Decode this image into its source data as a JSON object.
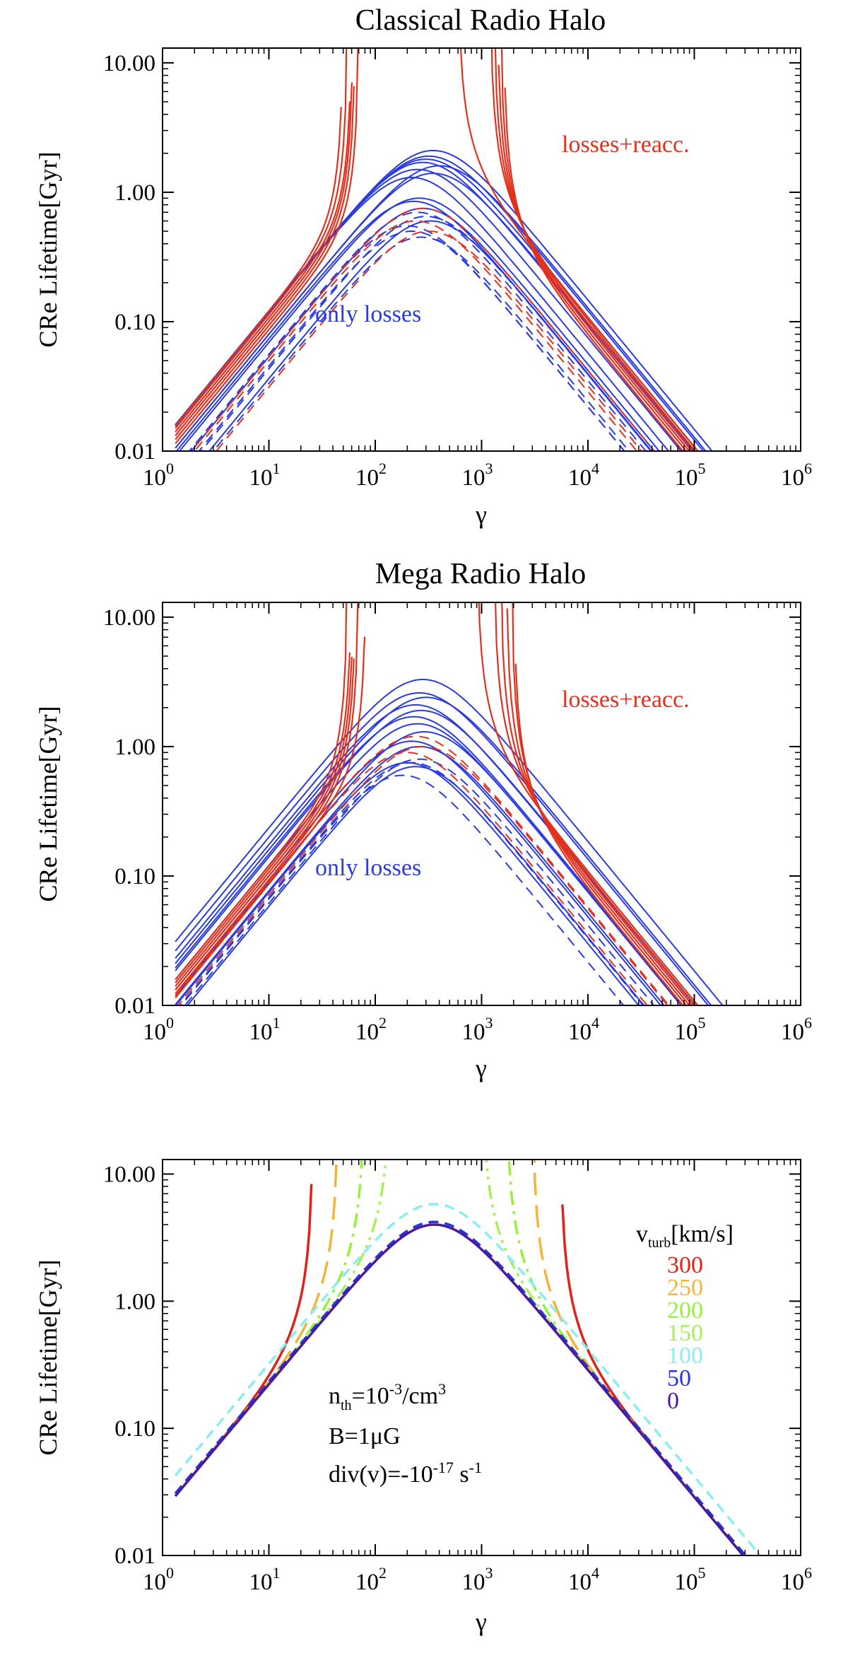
{
  "chart_data": [
    {
      "type": "line",
      "title": "Classical Radio Halo",
      "xlabel": "γ",
      "ylabel": "CRe Lifetime[Gyr]",
      "xscale": "log",
      "yscale": "log",
      "xlim": [
        1,
        1000000
      ],
      "ylim": [
        0.01,
        13
      ],
      "xticks": [
        {
          "base": "10",
          "exp": "0"
        },
        {
          "base": "10",
          "exp": "1"
        },
        {
          "base": "10",
          "exp": "2"
        },
        {
          "base": "10",
          "exp": "3"
        },
        {
          "base": "10",
          "exp": "4"
        },
        {
          "base": "10",
          "exp": "5"
        },
        {
          "base": "10",
          "exp": "6"
        }
      ],
      "yticks": [
        "0.01",
        "0.10",
        "1.00",
        "10.00"
      ],
      "annotations": [
        {
          "text": "losses+reacc.",
          "color": "#e0321e",
          "x": 15000,
          "y": 2.5
        },
        {
          "text": "only losses",
          "color": "#2a3be0",
          "x": 120,
          "y": 0.11
        }
      ],
      "series": [
        {
          "name": "only losses (solid)",
          "color": "#2a3be0",
          "style": "solid",
          "peak_gamma": [
            300,
            350,
            400,
            250,
            280,
            320,
            220,
            350,
            230,
            260,
            280,
            330
          ],
          "peak_value": [
            1.8,
            2.1,
            1.6,
            1.5,
            1.7,
            1.9,
            1.3,
            1.4,
            0.85,
            0.9,
            0.75,
            0.6
          ]
        },
        {
          "name": "only losses (dashed)",
          "color": "#2a3be0",
          "style": "dashed",
          "peak_gamma": [
            200,
            250,
            300,
            220,
            270
          ],
          "peak_value": [
            0.55,
            0.7,
            0.65,
            0.5,
            0.45
          ]
        },
        {
          "name": "losses+reacc. (dashed)",
          "color": "#e0321e",
          "style": "dashed",
          "peak_gamma": [
            240,
            280,
            320
          ],
          "peak_value": [
            0.6,
            0.75,
            0.5
          ]
        },
        {
          "name": "losses+reacc. (solid)",
          "color": "#e0321e",
          "style": "solid",
          "low_gamma_blowup": [
            50,
            55,
            60,
            62,
            65,
            70
          ],
          "high_gamma_blowup": [
            600,
            1200,
            1300,
            1400,
            1500,
            1600
          ]
        }
      ]
    },
    {
      "type": "line",
      "title": "Mega Radio Halo",
      "xlabel": "γ",
      "ylabel": "CRe Lifetime[Gyr]",
      "xscale": "log",
      "yscale": "log",
      "xlim": [
        1,
        1000000
      ],
      "ylim": [
        0.01,
        13
      ],
      "xticks": [
        {
          "base": "10",
          "exp": "0"
        },
        {
          "base": "10",
          "exp": "1"
        },
        {
          "base": "10",
          "exp": "2"
        },
        {
          "base": "10",
          "exp": "3"
        },
        {
          "base": "10",
          "exp": "4"
        },
        {
          "base": "10",
          "exp": "5"
        },
        {
          "base": "10",
          "exp": "6"
        }
      ],
      "yticks": [
        "0.01",
        "0.10",
        "1.00",
        "10.00"
      ],
      "annotations": [
        {
          "text": "losses+reacc.",
          "color": "#e0321e",
          "x": 15000,
          "y": 4.5
        },
        {
          "text": "only losses",
          "color": "#2a3be0",
          "x": 120,
          "y": 0.085
        }
      ],
      "series": [
        {
          "name": "only losses (solid)",
          "color": "#2a3be0",
          "style": "solid",
          "peak_gamma": [
            280,
            260,
            300,
            240,
            270,
            230,
            250,
            290,
            220,
            260,
            200,
            240
          ],
          "peak_value": [
            3.3,
            2.6,
            2.4,
            2.1,
            1.9,
            1.7,
            1.5,
            1.3,
            1.1,
            1.0,
            0.75,
            0.7
          ]
        },
        {
          "name": "only losses (dashed)",
          "color": "#2a3be0",
          "style": "dashed",
          "peak_gamma": [
            180,
            220,
            260
          ],
          "peak_value": [
            0.6,
            0.75,
            0.8
          ]
        },
        {
          "name": "losses+reacc. (dashed)",
          "color": "#e0321e",
          "style": "dashed",
          "peak_gamma": [
            200,
            240,
            280
          ],
          "peak_value": [
            0.9,
            1.2,
            1.0
          ]
        },
        {
          "name": "losses+reacc. (solid)",
          "color": "#e0321e",
          "style": "solid",
          "low_gamma_blowup": [
            55,
            60,
            63,
            66,
            70,
            82
          ],
          "high_gamma_blowup": [
            900,
            1300,
            1500,
            1700,
            1900,
            2000
          ]
        }
      ]
    },
    {
      "type": "line",
      "title": "",
      "xlabel": "γ",
      "ylabel": "CRe Lifetime[Gyr]",
      "xscale": "log",
      "yscale": "log",
      "xlim": [
        1,
        1000000
      ],
      "ylim": [
        0.01,
        13
      ],
      "xticks": [
        {
          "base": "10",
          "exp": "0"
        },
        {
          "base": "10",
          "exp": "1"
        },
        {
          "base": "10",
          "exp": "2"
        },
        {
          "base": "10",
          "exp": "3"
        },
        {
          "base": "10",
          "exp": "4"
        },
        {
          "base": "10",
          "exp": "5"
        },
        {
          "base": "10",
          "exp": "6"
        }
      ],
      "yticks": [
        "0.01",
        "0.10",
        "1.00",
        "10.00"
      ],
      "legend": {
        "title_main": "v",
        "title_sub": "turb",
        "title_unit": "[km/s]",
        "placement": "right"
      },
      "params": [
        {
          "pre": "n",
          "sub": "th",
          "mid": "=10",
          "sup": "-3",
          "post": "/cm",
          "sup2": "3"
        },
        {
          "pre": "B=1μG",
          "sub": "",
          "mid": "",
          "sup": "",
          "post": "",
          "sup2": ""
        },
        {
          "pre": "div(v)=-10",
          "sub": "",
          "mid": "",
          "sup": "-17",
          "post": " s",
          "sup2": "-1"
        }
      ],
      "series": [
        {
          "name": "300",
          "color": "#e0221a",
          "style": "solid",
          "low_end": 26,
          "high_start": 5500
        },
        {
          "name": "250",
          "color": "#f2b43a",
          "style": "longdash",
          "low_end": 45,
          "high_start": 3000
        },
        {
          "name": "200",
          "color": "#94f23a",
          "style": "dashdot",
          "low_end": 80,
          "high_start": 1700
        },
        {
          "name": "150",
          "color": "#a6f05c",
          "style": "dashdotdot",
          "low_end": 140,
          "high_start": 1000
        },
        {
          "name": "100",
          "color": "#8cecf2",
          "style": "dashed",
          "peak": 5.8
        },
        {
          "name": "50",
          "color": "#2636d8",
          "style": "dashed",
          "peak": 4.2
        },
        {
          "name": "0",
          "color": "#4a1a9a",
          "style": "solid",
          "peak": 4.0
        }
      ]
    }
  ]
}
